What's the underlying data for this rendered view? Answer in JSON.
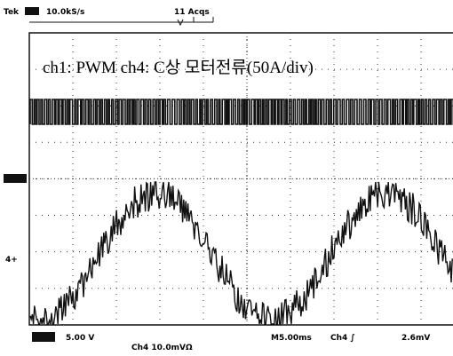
{
  "header": {
    "brand": "Tek",
    "sample_rate": "10.0kS/s",
    "acquisitions": "11 Acqs"
  },
  "screen": {
    "annotation": "ch1: PWM   ch4: C상 모터전류(50A/div)",
    "ch4_marker": "4+"
  },
  "footer": {
    "ch1_scale": "5.00 V",
    "ch4_scale": "Ch4  10.0mVΩ",
    "timebase": "M5.00ms",
    "trigger": "Ch4 ∫",
    "trigger_level": "2.6mV"
  }
}
